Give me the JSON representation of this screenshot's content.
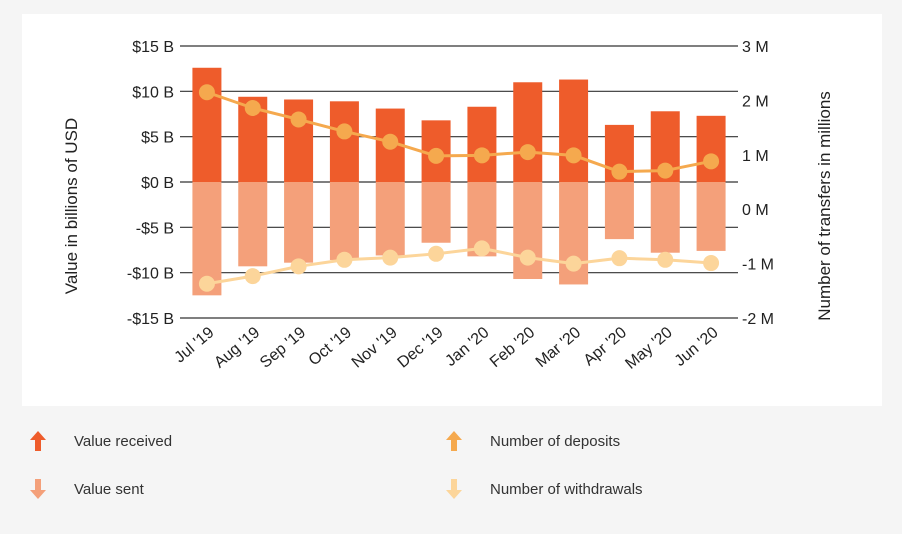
{
  "chart_data": {
    "type": "bar",
    "categories": [
      "Jul '19",
      "Aug '19",
      "Sep '19",
      "Oct '19",
      "Nov '19",
      "Dec '19",
      "Jan '20",
      "Feb '20",
      "Mar '20",
      "Apr '20",
      "May '20",
      "Jun '20"
    ],
    "ylabel": "Value in billions of USD",
    "y2label": "Number of transfers in millions",
    "ylim": [
      -15,
      15
    ],
    "y2lim": [
      -2,
      3
    ],
    "yticks": [
      "$15 B",
      "$10 B",
      "$5 B",
      "$0 B",
      "-$5 B",
      "-$10 B",
      "-$15 B"
    ],
    "yticks_values": [
      15,
      10,
      5,
      0,
      -5,
      -10,
      -15
    ],
    "y2ticks": [
      "3 M",
      "2 M",
      "1 M",
      "0 M",
      "-1 M",
      "-2 M"
    ],
    "y2ticks_values": [
      3,
      2,
      1,
      0,
      -1,
      -2
    ],
    "series": [
      {
        "name": "Value received",
        "kind": "bar",
        "axis": "left",
        "color": "#ee5c2b",
        "values": [
          12.6,
          9.4,
          9.1,
          8.9,
          8.1,
          6.8,
          8.3,
          11.0,
          11.3,
          6.3,
          7.8,
          7.3
        ]
      },
      {
        "name": "Value sent",
        "kind": "bar",
        "axis": "left",
        "color": "#f4a07a",
        "values": [
          -12.5,
          -9.3,
          -8.9,
          -8.6,
          -8.1,
          -6.7,
          -8.2,
          -10.7,
          -11.3,
          -6.3,
          -7.8,
          -7.6
        ]
      },
      {
        "name": "Number of deposits",
        "kind": "line",
        "axis": "right",
        "color": "#f5a94e",
        "values": [
          2.15,
          1.86,
          1.65,
          1.43,
          1.24,
          0.98,
          0.99,
          1.05,
          0.99,
          0.69,
          0.71,
          0.88
        ]
      },
      {
        "name": "Number of withdrawals",
        "kind": "line",
        "axis": "right",
        "color": "#fcd59a",
        "values": [
          -1.37,
          -1.23,
          -1.05,
          -0.93,
          -0.89,
          -0.82,
          -0.72,
          -0.89,
          -1.0,
          -0.9,
          -0.93,
          -0.99
        ]
      }
    ],
    "grid": true,
    "legend_position": "bottom"
  },
  "legend": [
    {
      "label": "Value received",
      "icon": "arrow-up-icon",
      "color": "#ee5c2b"
    },
    {
      "label": "Number of deposits",
      "icon": "arrow-up-icon",
      "color": "#f5a94e"
    },
    {
      "label": "Value sent",
      "icon": "arrow-down-icon",
      "color": "#f4a07a"
    },
    {
      "label": "Number of withdrawals",
      "icon": "arrow-down-icon",
      "color": "#fcd59a"
    }
  ]
}
